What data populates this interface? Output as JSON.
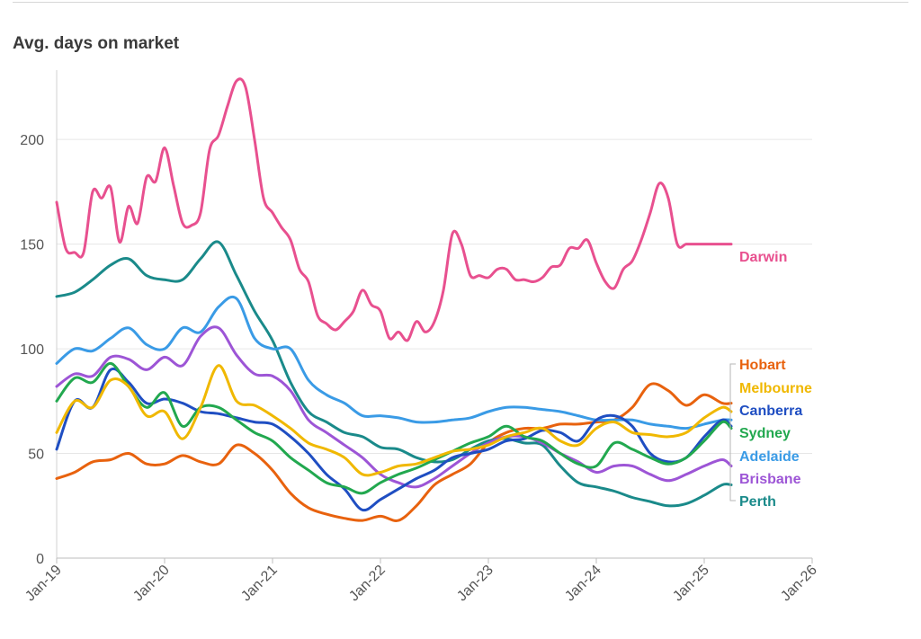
{
  "chart_data": {
    "type": "line",
    "title": "Avg. days on market",
    "xlabel": "",
    "ylabel": "",
    "x_ticks": [
      "Jan-19",
      "Jan-20",
      "Jan-21",
      "Jan-22",
      "Jan-23",
      "Jan-24",
      "Jan-25",
      "Jan-26"
    ],
    "y_ticks": [
      0,
      50,
      100,
      150,
      200
    ],
    "xlim": [
      "2019-01",
      "2026-01"
    ],
    "ylim": [
      0,
      240
    ],
    "grid": "horizontal",
    "legend": "direct labels at line ends (right)",
    "series": [
      {
        "name": "Darwin",
        "color": "#e8508f",
        "x": [
          "2019-01",
          "2019-02",
          "2019-03",
          "2019-04",
          "2019-05",
          "2019-06",
          "2019-07",
          "2019-08",
          "2019-09",
          "2019-10",
          "2019-11",
          "2019-12",
          "2020-01",
          "2020-02",
          "2020-03",
          "2020-04",
          "2020-05",
          "2020-06",
          "2020-07",
          "2020-08",
          "2020-09",
          "2020-10",
          "2020-11",
          "2020-12",
          "2021-01",
          "2021-02",
          "2021-03",
          "2021-04",
          "2021-05",
          "2021-06",
          "2021-07",
          "2021-08",
          "2021-09",
          "2021-10",
          "2021-11",
          "2021-12",
          "2022-01",
          "2022-02",
          "2022-03",
          "2022-04",
          "2022-05",
          "2022-06",
          "2022-07",
          "2022-08",
          "2022-09",
          "2022-10",
          "2022-11",
          "2022-12",
          "2023-01",
          "2023-02",
          "2023-03",
          "2023-04",
          "2023-05",
          "2023-06",
          "2023-07",
          "2023-08",
          "2023-09",
          "2023-10",
          "2023-11",
          "2023-12",
          "2024-01",
          "2024-02",
          "2024-03",
          "2024-04",
          "2024-05",
          "2024-06",
          "2024-07",
          "2024-08",
          "2024-09",
          "2024-10",
          "2024-11",
          "2024-12",
          "2025-01",
          "2025-02",
          "2025-03",
          "2025-04"
        ],
        "values": [
          170,
          148,
          146,
          146,
          175,
          172,
          177,
          151,
          168,
          160,
          182,
          180,
          196,
          178,
          160,
          159,
          165,
          195,
          202,
          216,
          228,
          225,
          200,
          172,
          165,
          158,
          152,
          138,
          132,
          116,
          112,
          109,
          113,
          118,
          128,
          121,
          118,
          105,
          108,
          104,
          113,
          108,
          113,
          128,
          155,
          150,
          135,
          135,
          134,
          138,
          138,
          133,
          133,
          132,
          134,
          139,
          140,
          148,
          148,
          152,
          141,
          132,
          129,
          138,
          142,
          152,
          165,
          179,
          172,
          150,
          150,
          150,
          150,
          150,
          150,
          150
        ]
      },
      {
        "name": "Hobart",
        "color": "#e8620e",
        "x": [
          "2019-01",
          "2019-03",
          "2019-05",
          "2019-07",
          "2019-09",
          "2019-11",
          "2020-01",
          "2020-03",
          "2020-05",
          "2020-07",
          "2020-09",
          "2020-11",
          "2021-01",
          "2021-03",
          "2021-05",
          "2021-07",
          "2021-09",
          "2021-11",
          "2022-01",
          "2022-03",
          "2022-05",
          "2022-07",
          "2022-09",
          "2022-11",
          "2023-01",
          "2023-03",
          "2023-05",
          "2023-07",
          "2023-09",
          "2023-11",
          "2024-01",
          "2024-03",
          "2024-05",
          "2024-07",
          "2024-09",
          "2024-11",
          "2025-01",
          "2025-03",
          "2025-04"
        ],
        "values": [
          38,
          41,
          46,
          47,
          50,
          45,
          45,
          49,
          46,
          45,
          54,
          50,
          42,
          31,
          24,
          21,
          19,
          18,
          20,
          18,
          25,
          35,
          40,
          45,
          55,
          60,
          62,
          62,
          64,
          64,
          65,
          66,
          72,
          83,
          80,
          73,
          78,
          74,
          74
        ]
      },
      {
        "name": "Melbourne",
        "color": "#f0b800",
        "x": [
          "2019-01",
          "2019-03",
          "2019-05",
          "2019-07",
          "2019-09",
          "2019-11",
          "2020-01",
          "2020-03",
          "2020-05",
          "2020-07",
          "2020-09",
          "2020-11",
          "2021-01",
          "2021-03",
          "2021-05",
          "2021-07",
          "2021-09",
          "2021-11",
          "2022-01",
          "2022-03",
          "2022-05",
          "2022-07",
          "2022-09",
          "2022-11",
          "2023-01",
          "2023-03",
          "2023-05",
          "2023-07",
          "2023-09",
          "2023-11",
          "2024-01",
          "2024-03",
          "2024-05",
          "2024-07",
          "2024-09",
          "2024-11",
          "2025-01",
          "2025-03",
          "2025-04"
        ],
        "values": [
          60,
          75,
          72,
          85,
          82,
          68,
          70,
          57,
          72,
          92,
          75,
          73,
          68,
          62,
          55,
          52,
          48,
          40,
          41,
          44,
          45,
          48,
          51,
          52,
          54,
          58,
          60,
          62,
          56,
          54,
          62,
          65,
          60,
          59,
          58,
          60,
          67,
          72,
          70
        ]
      },
      {
        "name": "Canberra",
        "color": "#1f4ec2",
        "x": [
          "2019-01",
          "2019-03",
          "2019-05",
          "2019-07",
          "2019-09",
          "2019-11",
          "2020-01",
          "2020-03",
          "2020-05",
          "2020-07",
          "2020-09",
          "2020-11",
          "2021-01",
          "2021-03",
          "2021-05",
          "2021-07",
          "2021-09",
          "2021-11",
          "2022-01",
          "2022-03",
          "2022-05",
          "2022-07",
          "2022-09",
          "2022-11",
          "2023-01",
          "2023-03",
          "2023-05",
          "2023-07",
          "2023-09",
          "2023-11",
          "2024-01",
          "2024-03",
          "2024-05",
          "2024-07",
          "2024-09",
          "2024-11",
          "2025-01",
          "2025-03",
          "2025-04"
        ],
        "values": [
          52,
          75,
          72,
          90,
          84,
          74,
          76,
          74,
          70,
          69,
          67,
          65,
          64,
          58,
          50,
          40,
          33,
          23,
          28,
          33,
          38,
          42,
          48,
          50,
          52,
          56,
          57,
          61,
          60,
          56,
          66,
          68,
          63,
          50,
          46,
          48,
          58,
          66,
          63
        ]
      },
      {
        "name": "Sydney",
        "color": "#22a84f",
        "x": [
          "2019-01",
          "2019-03",
          "2019-05",
          "2019-07",
          "2019-09",
          "2019-11",
          "2020-01",
          "2020-03",
          "2020-05",
          "2020-07",
          "2020-09",
          "2020-11",
          "2021-01",
          "2021-03",
          "2021-05",
          "2021-07",
          "2021-09",
          "2021-11",
          "2022-01",
          "2022-03",
          "2022-05",
          "2022-07",
          "2022-09",
          "2022-11",
          "2023-01",
          "2023-03",
          "2023-05",
          "2023-07",
          "2023-09",
          "2023-11",
          "2024-01",
          "2024-03",
          "2024-05",
          "2024-07",
          "2024-09",
          "2024-11",
          "2025-01",
          "2025-03",
          "2025-04"
        ],
        "values": [
          75,
          86,
          84,
          93,
          82,
          72,
          79,
          63,
          72,
          72,
          66,
          60,
          56,
          48,
          42,
          36,
          34,
          31,
          36,
          40,
          43,
          47,
          51,
          55,
          58,
          63,
          58,
          56,
          50,
          45,
          44,
          55,
          52,
          48,
          45,
          48,
          56,
          65,
          62
        ]
      },
      {
        "name": "Adelaide",
        "color": "#3a9be6",
        "x": [
          "2019-01",
          "2019-03",
          "2019-05",
          "2019-07",
          "2019-09",
          "2019-11",
          "2020-01",
          "2020-03",
          "2020-05",
          "2020-07",
          "2020-09",
          "2020-11",
          "2021-01",
          "2021-03",
          "2021-05",
          "2021-07",
          "2021-09",
          "2021-11",
          "2022-01",
          "2022-03",
          "2022-05",
          "2022-07",
          "2022-09",
          "2022-11",
          "2023-01",
          "2023-03",
          "2023-05",
          "2023-07",
          "2023-09",
          "2023-11",
          "2024-01",
          "2024-03",
          "2024-05",
          "2024-07",
          "2024-09",
          "2024-11",
          "2025-01",
          "2025-03",
          "2025-04"
        ],
        "values": [
          93,
          100,
          99,
          105,
          110,
          102,
          100,
          110,
          108,
          120,
          124,
          105,
          100,
          100,
          85,
          78,
          74,
          68,
          68,
          67,
          65,
          65,
          66,
          67,
          70,
          72,
          72,
          71,
          70,
          68,
          66,
          66,
          66,
          64,
          63,
          62,
          64,
          66,
          66
        ]
      },
      {
        "name": "Brisbane",
        "color": "#9d55d6",
        "x": [
          "2019-01",
          "2019-03",
          "2019-05",
          "2019-07",
          "2019-09",
          "2019-11",
          "2020-01",
          "2020-03",
          "2020-05",
          "2020-07",
          "2020-09",
          "2020-11",
          "2021-01",
          "2021-03",
          "2021-05",
          "2021-07",
          "2021-09",
          "2021-11",
          "2022-01",
          "2022-03",
          "2022-05",
          "2022-07",
          "2022-09",
          "2022-11",
          "2023-01",
          "2023-03",
          "2023-05",
          "2023-07",
          "2023-09",
          "2023-11",
          "2024-01",
          "2024-03",
          "2024-05",
          "2024-07",
          "2024-09",
          "2024-11",
          "2025-01",
          "2025-03",
          "2025-04"
        ],
        "values": [
          82,
          88,
          87,
          96,
          95,
          90,
          96,
          92,
          106,
          110,
          97,
          88,
          87,
          80,
          66,
          60,
          54,
          48,
          40,
          36,
          34,
          38,
          44,
          50,
          55,
          58,
          58,
          55,
          50,
          46,
          41,
          44,
          44,
          40,
          37,
          40,
          44,
          47,
          44
        ]
      },
      {
        "name": "Perth",
        "color": "#1a8a8a",
        "x": [
          "2019-01",
          "2019-03",
          "2019-05",
          "2019-07",
          "2019-09",
          "2019-11",
          "2020-01",
          "2020-03",
          "2020-05",
          "2020-07",
          "2020-09",
          "2020-11",
          "2021-01",
          "2021-03",
          "2021-05",
          "2021-07",
          "2021-09",
          "2021-11",
          "2022-01",
          "2022-03",
          "2022-05",
          "2022-07",
          "2022-09",
          "2022-11",
          "2023-01",
          "2023-03",
          "2023-05",
          "2023-07",
          "2023-09",
          "2023-11",
          "2024-01",
          "2024-03",
          "2024-05",
          "2024-07",
          "2024-09",
          "2024-11",
          "2025-01",
          "2025-03",
          "2025-04"
        ],
        "values": [
          125,
          127,
          133,
          140,
          143,
          135,
          133,
          133,
          143,
          151,
          135,
          118,
          104,
          84,
          70,
          65,
          60,
          58,
          53,
          52,
          48,
          46,
          47,
          52,
          56,
          57,
          55,
          54,
          44,
          36,
          34,
          32,
          29,
          27,
          25,
          26,
          30,
          35,
          35
        ]
      }
    ]
  }
}
